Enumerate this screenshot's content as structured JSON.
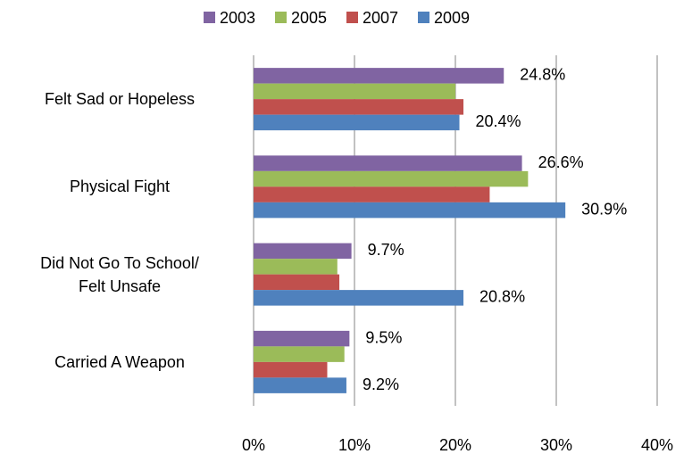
{
  "chart_data": {
    "type": "bar",
    "orientation": "horizontal",
    "categories": [
      "Felt Sad or Hopeless",
      "Physical Fight",
      "Did Not Go To School/\nFelt Unsafe",
      "Carried A Weapon"
    ],
    "series": [
      {
        "name": "2003",
        "color": "#8064a2",
        "values": [
          24.8,
          26.6,
          9.7,
          9.5
        ],
        "value_labels": [
          "24.8%",
          "26.6%",
          "9.7%",
          "9.5%"
        ]
      },
      {
        "name": "2005",
        "color": "#9bbb59",
        "values": [
          20.0,
          27.2,
          8.3,
          9.0
        ]
      },
      {
        "name": "2007",
        "color": "#c0504d",
        "values": [
          20.8,
          23.4,
          8.5,
          7.3
        ]
      },
      {
        "name": "2009",
        "color": "#4f81bd",
        "values": [
          20.4,
          30.9,
          20.8,
          9.2
        ],
        "value_labels": [
          "20.4%",
          "30.9%",
          "20.8%",
          "9.2%"
        ]
      }
    ],
    "xlim": [
      0,
      40
    ],
    "xticks": [
      {
        "value": 0,
        "label": "0%"
      },
      {
        "value": 10,
        "label": "10%"
      },
      {
        "value": 20,
        "label": "20%"
      },
      {
        "value": 30,
        "label": "30%"
      },
      {
        "value": 40,
        "label": "40%"
      }
    ],
    "grid": true,
    "legend": "top"
  }
}
